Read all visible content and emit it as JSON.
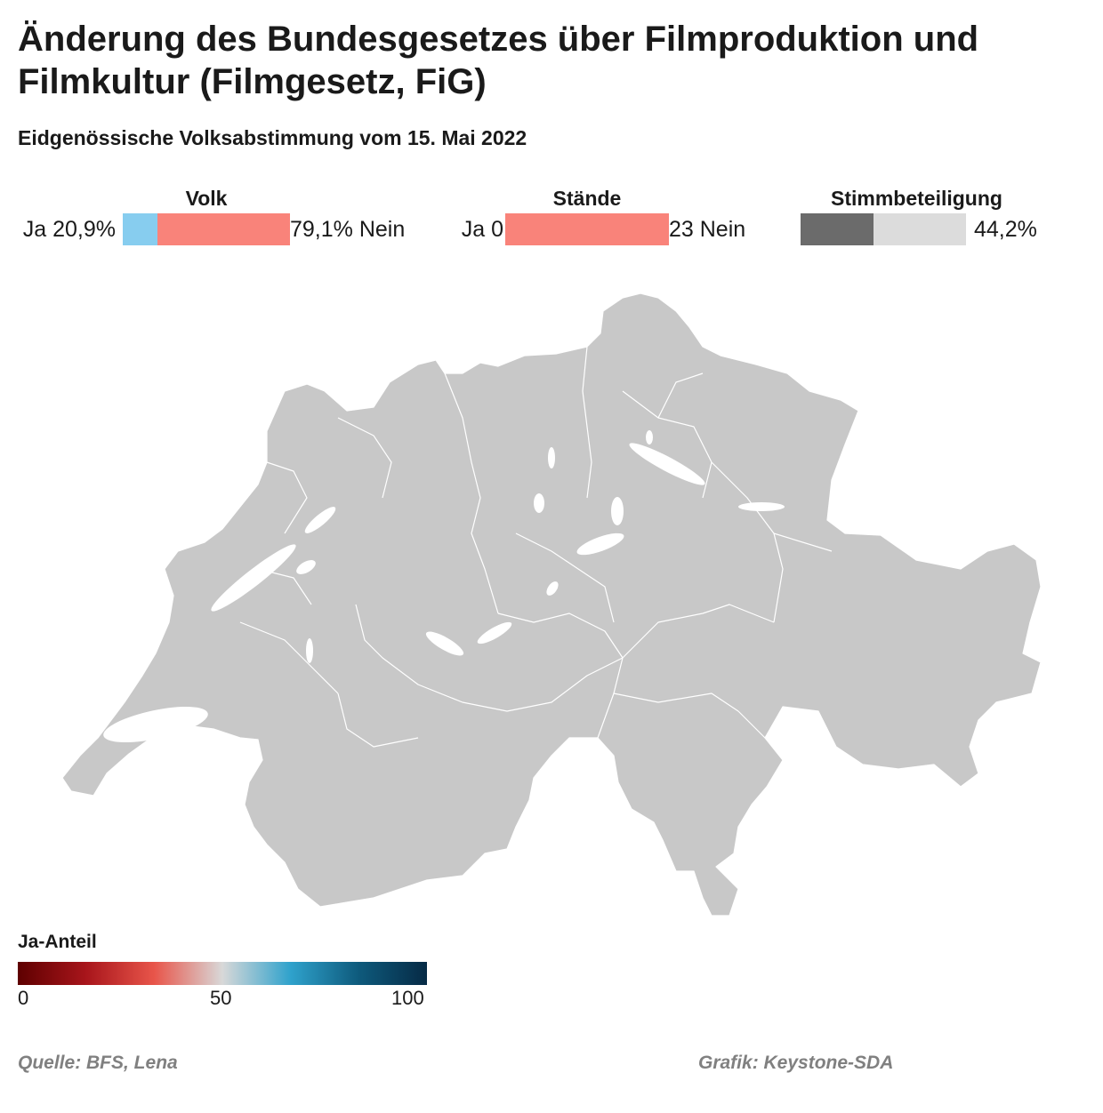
{
  "title": "Änderung des Bundesgesetzes über Filmproduktion und Filmkultur (Filmgesetz, FiG)",
  "subtitle": "Eidgenössische Volksabstimmung vom 15. Mai 2022",
  "volk": {
    "label": "Volk",
    "ja_text": "Ja 20,9%",
    "nein_text": "79,1% Nein",
    "ja_share": 0.209,
    "ja_color": "#87cdef",
    "nein_color": "#f9837a"
  },
  "staende": {
    "label": "Stände",
    "ja_text": "Ja 0",
    "nein_text": "23 Nein",
    "ja_share": 0,
    "nein_color": "#f9837a"
  },
  "stimmbeteiligung": {
    "label": "Stimmbeteiligung",
    "value_text": "44,2%",
    "share": 0.442,
    "fill_color": "#6b6b6b",
    "rest_color": "#dcdcdc"
  },
  "map": {
    "region": "Schweiz",
    "fill_color": "#c8c8c8",
    "border_color": "#ffffff"
  },
  "legend": {
    "title": "Ja-Anteil",
    "ticks": [
      "0",
      "50",
      "100"
    ],
    "colors": [
      "#5e0000",
      "#a8151b",
      "#e8554a",
      "#d8d8d8",
      "#2fa2cc",
      "#0e5a7c",
      "#062a45"
    ]
  },
  "footer": {
    "source": "Quelle: BFS, Lena",
    "credit": "Grafik: Keystone-SDA"
  }
}
